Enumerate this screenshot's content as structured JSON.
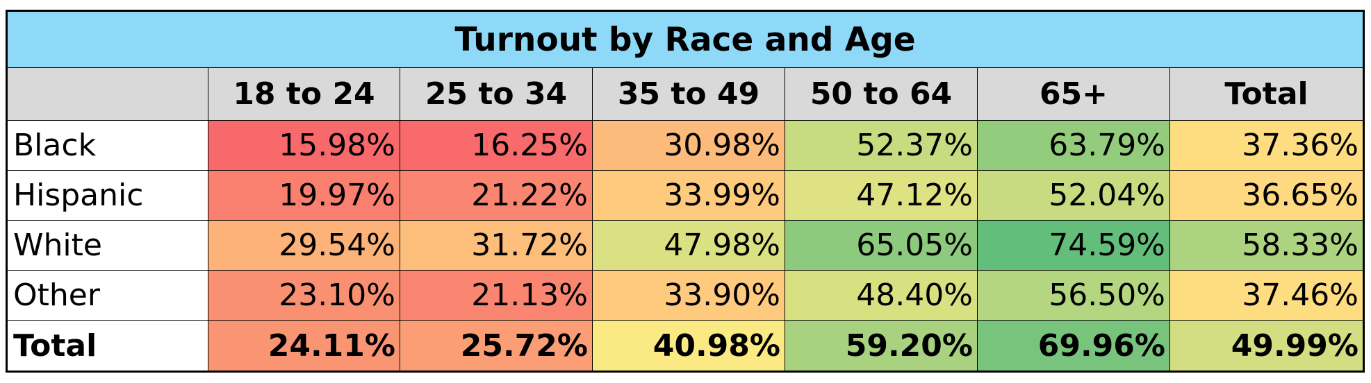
{
  "chart_data": {
    "type": "table",
    "title": "Turnout by Race and Age",
    "columns": [
      "18 to 24",
      "25 to 34",
      "35 to 49",
      "50 to 64",
      "65+",
      "Total"
    ],
    "rows": [
      {
        "label": "Black",
        "cells": [
          "15.98%",
          "16.25%",
          "30.98%",
          "52.37%",
          "63.79%",
          "37.36%"
        ],
        "values": [
          15.98,
          16.25,
          30.98,
          52.37,
          63.79,
          37.36
        ]
      },
      {
        "label": "Hispanic",
        "cells": [
          "19.97%",
          "21.22%",
          "33.99%",
          "47.12%",
          "52.04%",
          "36.65%"
        ],
        "values": [
          19.97,
          21.22,
          33.99,
          47.12,
          52.04,
          36.65
        ]
      },
      {
        "label": "White",
        "cells": [
          "29.54%",
          "31.72%",
          "47.98%",
          "65.05%",
          "74.59%",
          "58.33%"
        ],
        "values": [
          29.54,
          31.72,
          47.98,
          65.05,
          74.59,
          58.33
        ]
      },
      {
        "label": "Other",
        "cells": [
          "23.10%",
          "21.13%",
          "33.90%",
          "48.40%",
          "56.50%",
          "37.46%"
        ],
        "values": [
          23.1,
          21.13,
          33.9,
          48.4,
          56.5,
          37.46
        ]
      },
      {
        "label": "Total",
        "cells": [
          "24.11%",
          "25.72%",
          "40.98%",
          "59.20%",
          "69.96%",
          "49.99%"
        ],
        "values": [
          24.11,
          25.72,
          40.98,
          59.2,
          69.96,
          49.99
        ]
      }
    ],
    "color_scale": {
      "type": "red-yellow-green",
      "min_value": 15.98,
      "mid_value": 40.0,
      "max_value": 74.59,
      "min_color": "#f8696b",
      "mid_color": "#ffeb84",
      "max_color": "#63be7b"
    },
    "colors": {
      "title_background": "#8ed8f8",
      "header_background": "#d9d9d9",
      "border": "#000000"
    }
  }
}
